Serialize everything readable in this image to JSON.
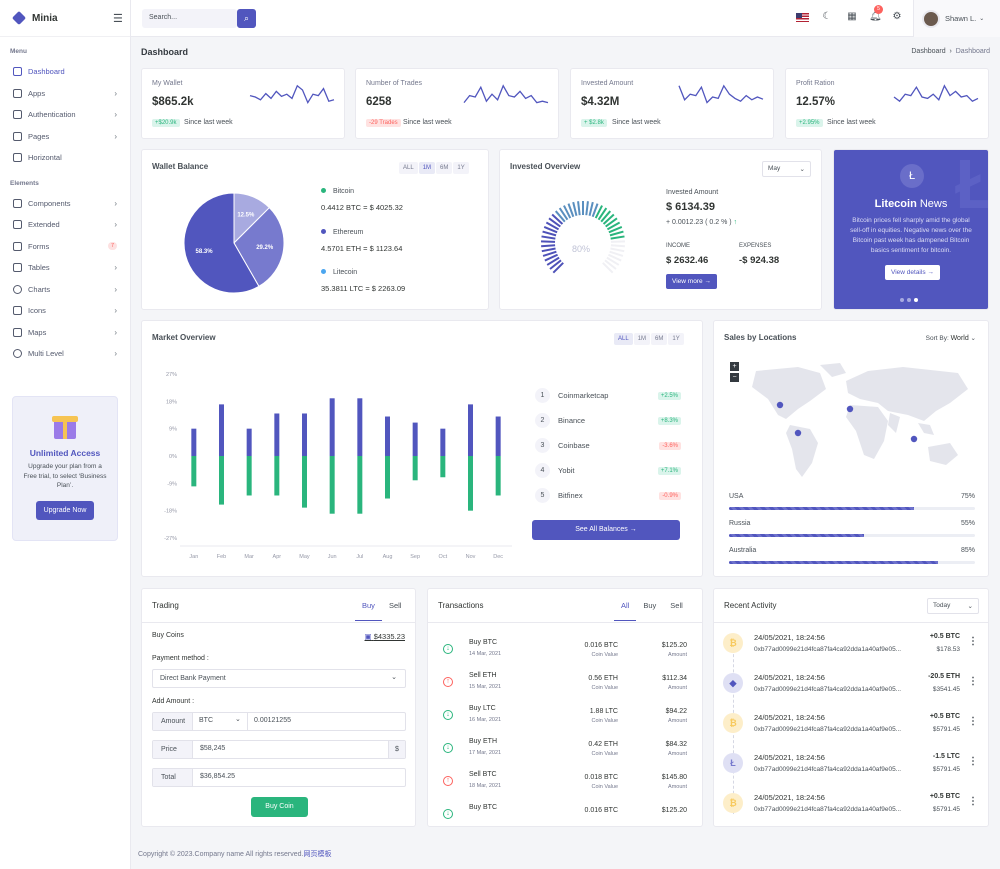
{
  "app": {
    "name": "Minia"
  },
  "sidebar": {
    "menu_title": "Menu",
    "elements_title": "Elements",
    "items": [
      {
        "label": "Dashboard"
      },
      {
        "label": "Apps"
      },
      {
        "label": "Authentication"
      },
      {
        "label": "Pages"
      },
      {
        "label": "Horizontal"
      }
    ],
    "elements": [
      {
        "label": "Components"
      },
      {
        "label": "Extended"
      },
      {
        "label": "Forms",
        "badge": "7"
      },
      {
        "label": "Tables"
      },
      {
        "label": "Charts"
      },
      {
        "label": "Icons"
      },
      {
        "label": "Maps"
      },
      {
        "label": "Multi Level"
      }
    ],
    "promo": {
      "title": "Unlimited Access",
      "text": "Upgrade your plan from a Free trial, to select ‘Business Plan’.",
      "button": "Upgrade Now"
    }
  },
  "topbar": {
    "search_placeholder": "Search...",
    "notifications": "5",
    "user": "Shawn L."
  },
  "page": {
    "title": "Dashboard",
    "crumb_parent": "Dashboard",
    "crumb_current": "Dashboard"
  },
  "stats": [
    {
      "label": "My Wallet",
      "value": "$865.2k",
      "change": "+$20.9k",
      "dir": "up",
      "since": "Since last week",
      "spark": [
        0.55,
        0.5,
        0.4,
        0.62,
        0.45,
        0.7,
        0.52,
        0.6,
        0.45,
        0.9,
        0.75,
        0.3,
        0.6,
        0.55,
        0.8,
        0.35,
        0.4
      ]
    },
    {
      "label": "Number of Trades",
      "value": "6258",
      "change": "-29 Trades",
      "dir": "dn",
      "since": "Since last week",
      "spark": [
        0.3,
        0.55,
        0.5,
        0.85,
        0.35,
        0.6,
        0.4,
        0.9,
        0.55,
        0.5,
        0.7,
        0.45,
        0.55,
        0.3,
        0.35,
        0.3
      ]
    },
    {
      "label": "Invested Amount",
      "value": "$4.32M",
      "change": "+ $2.8k",
      "dir": "up",
      "since": "Since last week",
      "spark": [
        0.9,
        0.4,
        0.6,
        0.55,
        0.85,
        0.3,
        0.5,
        0.45,
        0.9,
        0.6,
        0.45,
        0.35,
        0.55,
        0.4,
        0.5,
        0.42
      ]
    },
    {
      "label": "Profit Ration",
      "value": "12.57%",
      "change": "+2.95%",
      "dir": "up",
      "since": "Since last week",
      "spark": [
        0.5,
        0.35,
        0.6,
        0.55,
        0.85,
        0.5,
        0.45,
        0.6,
        0.4,
        0.9,
        0.55,
        0.7,
        0.5,
        0.55,
        0.35,
        0.45
      ]
    }
  ],
  "wallet": {
    "title": "Wallet Balance",
    "tabs": [
      "ALL",
      "1M",
      "6M",
      "1Y"
    ],
    "assets": [
      {
        "name": "Bitcoin",
        "amount": "0.4412 BTC = $ 4025.32",
        "color": "#2ab57d"
      },
      {
        "name": "Ethereum",
        "amount": "4.5701 ETH = $ 1123.64",
        "color": "#5156be"
      },
      {
        "name": "Litecoin",
        "amount": "35.3811 LTC = $ 2263.09",
        "color": "#4ba6ef"
      }
    ],
    "pie": [
      {
        "label": "58.3%",
        "value": 58.3,
        "color": "#5156be"
      },
      {
        "label": "29.2%",
        "value": 29.2,
        "color": "#777ace"
      },
      {
        "label": "12.5%",
        "value": 12.5,
        "color": "#a8aae0"
      }
    ]
  },
  "invested": {
    "title": "Invested Overview",
    "select": "May",
    "gauge_value": "80%",
    "gauge_fraction": 0.8,
    "amount_label": "Invested Amount",
    "amount": "$ 6134.39",
    "change": "+ 0.0012.23 ( 0.2 % )",
    "income_label": "INCOME",
    "income": "$ 2632.46",
    "expenses_label": "EXPENSES",
    "expenses": "-$ 924.38",
    "button": "View more"
  },
  "news": {
    "title_bold": "Litecoin",
    "title_rest": " News",
    "text": "Bitcoin prices fell sharply amid the global sell-off in equities. Negative news over the Bitcoin past week has dampened Bitcoin basics sentiment for bitcoin.",
    "button": "View details"
  },
  "market": {
    "title": "Market Overview",
    "tabs": [
      "ALL",
      "1M",
      "6M",
      "1Y"
    ],
    "yticks": [
      "27%",
      "18%",
      "9%",
      "0%",
      "-9%",
      "-18%",
      "-27%"
    ],
    "ranks": [
      {
        "n": "1",
        "name": "Coinmarketcap",
        "pct": "+2.5%",
        "dir": "up"
      },
      {
        "n": "2",
        "name": "Binance",
        "pct": "+8.3%",
        "dir": "up"
      },
      {
        "n": "3",
        "name": "Coinbase",
        "pct": "-3.6%",
        "dir": "dn"
      },
      {
        "n": "4",
        "name": "Yobit",
        "pct": "+7.1%",
        "dir": "up"
      },
      {
        "n": "5",
        "name": "Bitfinex",
        "pct": "-0.9%",
        "dir": "dn"
      }
    ],
    "button": "See All Balances"
  },
  "chart_data": {
    "type": "bar",
    "categories": [
      "Jan",
      "Feb",
      "Mar",
      "Apr",
      "May",
      "Jun",
      "Jul",
      "Aug",
      "Sep",
      "Oct",
      "Nov",
      "Dec"
    ],
    "series": [
      {
        "name": "",
        "values": [
          9,
          17,
          9,
          14,
          14,
          19,
          19,
          13,
          11,
          9,
          17,
          13
        ],
        "color": "#5156be"
      },
      {
        "name": "",
        "values": [
          -10,
          -16,
          -13,
          -13,
          -17,
          -19,
          -19,
          -14,
          -8,
          -7,
          -18,
          -13
        ],
        "color": "#2ab57d"
      }
    ],
    "ylim": [
      -27,
      27
    ],
    "grid": false
  },
  "sales": {
    "title": "Sales by Locations",
    "sort_label": "Sort By:",
    "sort_value": "World",
    "locations": [
      {
        "name": "USA",
        "pct": "75%",
        "value": 0.75
      },
      {
        "name": "Russia",
        "pct": "55%",
        "value": 0.55
      },
      {
        "name": "Australia",
        "pct": "85%",
        "value": 0.85
      }
    ]
  },
  "trading": {
    "title": "Trading",
    "tabs": [
      "Buy",
      "Sell"
    ],
    "buy_label": "Buy Coins",
    "balance": "$4335.23",
    "payment_label": "Payment method :",
    "payment_value": "Direct Bank Payment",
    "add_label": "Add Amount :",
    "amount_pre": "Amount",
    "coin": "BTC",
    "amount_value": "0.00121255",
    "price_pre": "Price",
    "price_value": "$58,245",
    "price_suffix": "$",
    "total_pre": "Total",
    "total_value": "$36,854.25",
    "button": "Buy Coin"
  },
  "transactions": {
    "title": "Transactions",
    "tabs": [
      "All",
      "Buy",
      "Sell"
    ],
    "items": [
      {
        "type": "Buy BTC",
        "date": "14 Mar, 2021",
        "qty": "0.016 BTC",
        "qty_label": "Coin Value",
        "amt": "$125.20",
        "amt_label": "Amount",
        "dir": "buy"
      },
      {
        "type": "Sell ETH",
        "date": "15 Mar, 2021",
        "qty": "0.56 ETH",
        "qty_label": "Coin Value",
        "amt": "$112.34",
        "amt_label": "Amount",
        "dir": "sell"
      },
      {
        "type": "Buy LTC",
        "date": "16 Mar, 2021",
        "qty": "1.88 LTC",
        "qty_label": "Coin Value",
        "amt": "$94.22",
        "amt_label": "Amount",
        "dir": "buy"
      },
      {
        "type": "Buy ETH",
        "date": "17 Mar, 2021",
        "qty": "0.42 ETH",
        "qty_label": "Coin Value",
        "amt": "$84.32",
        "amt_label": "Amount",
        "dir": "buy"
      },
      {
        "type": "Sell BTC",
        "date": "18 Mar, 2021",
        "qty": "0.018 BTC",
        "qty_label": "Coin Value",
        "amt": "$145.80",
        "amt_label": "Amount",
        "dir": "sell"
      },
      {
        "type": "Buy BTC",
        "date": "",
        "qty": "0.016 BTC",
        "qty_label": "",
        "amt": "$125.20",
        "amt_label": "",
        "dir": "buy"
      }
    ]
  },
  "activity": {
    "title": "Recent Activity",
    "select": "Today",
    "items": [
      {
        "coin": "btc",
        "date": "24/05/2021, 18:24:56",
        "hash": "0xb77ad0099e21d4fca87fa4ca92dda1a40af9e05...",
        "v1": "+0.5 BTC",
        "v2": "$178.53"
      },
      {
        "coin": "eth",
        "date": "24/05/2021, 18:24:56",
        "hash": "0xb77ad0099e21d4fca87fa4ca92dda1a40af9e05...",
        "v1": "-20.5 ETH",
        "v2": "$3541.45"
      },
      {
        "coin": "btc",
        "date": "24/05/2021, 18:24:56",
        "hash": "0xb77ad0099e21d4fca87fa4ca92dda1a40af9e05...",
        "v1": "+0.5 BTC",
        "v2": "$5791.45"
      },
      {
        "coin": "ltc",
        "date": "24/05/2021, 18:24:56",
        "hash": "0xb77ad0099e21d4fca87fa4ca92dda1a40af9e05...",
        "v1": "-1.5 LTC",
        "v2": "$5791.45"
      },
      {
        "coin": "btc",
        "date": "24/05/2021, 18:24:56",
        "hash": "0xb77ad0099e21d4fca87fa4ca92dda1a40af9e05...",
        "v1": "+0.5 BTC",
        "v2": "$5791.45"
      }
    ]
  },
  "footer": {
    "text": "Copyright © 2023.Company name All rights reserved.",
    "link": "网页模板"
  }
}
